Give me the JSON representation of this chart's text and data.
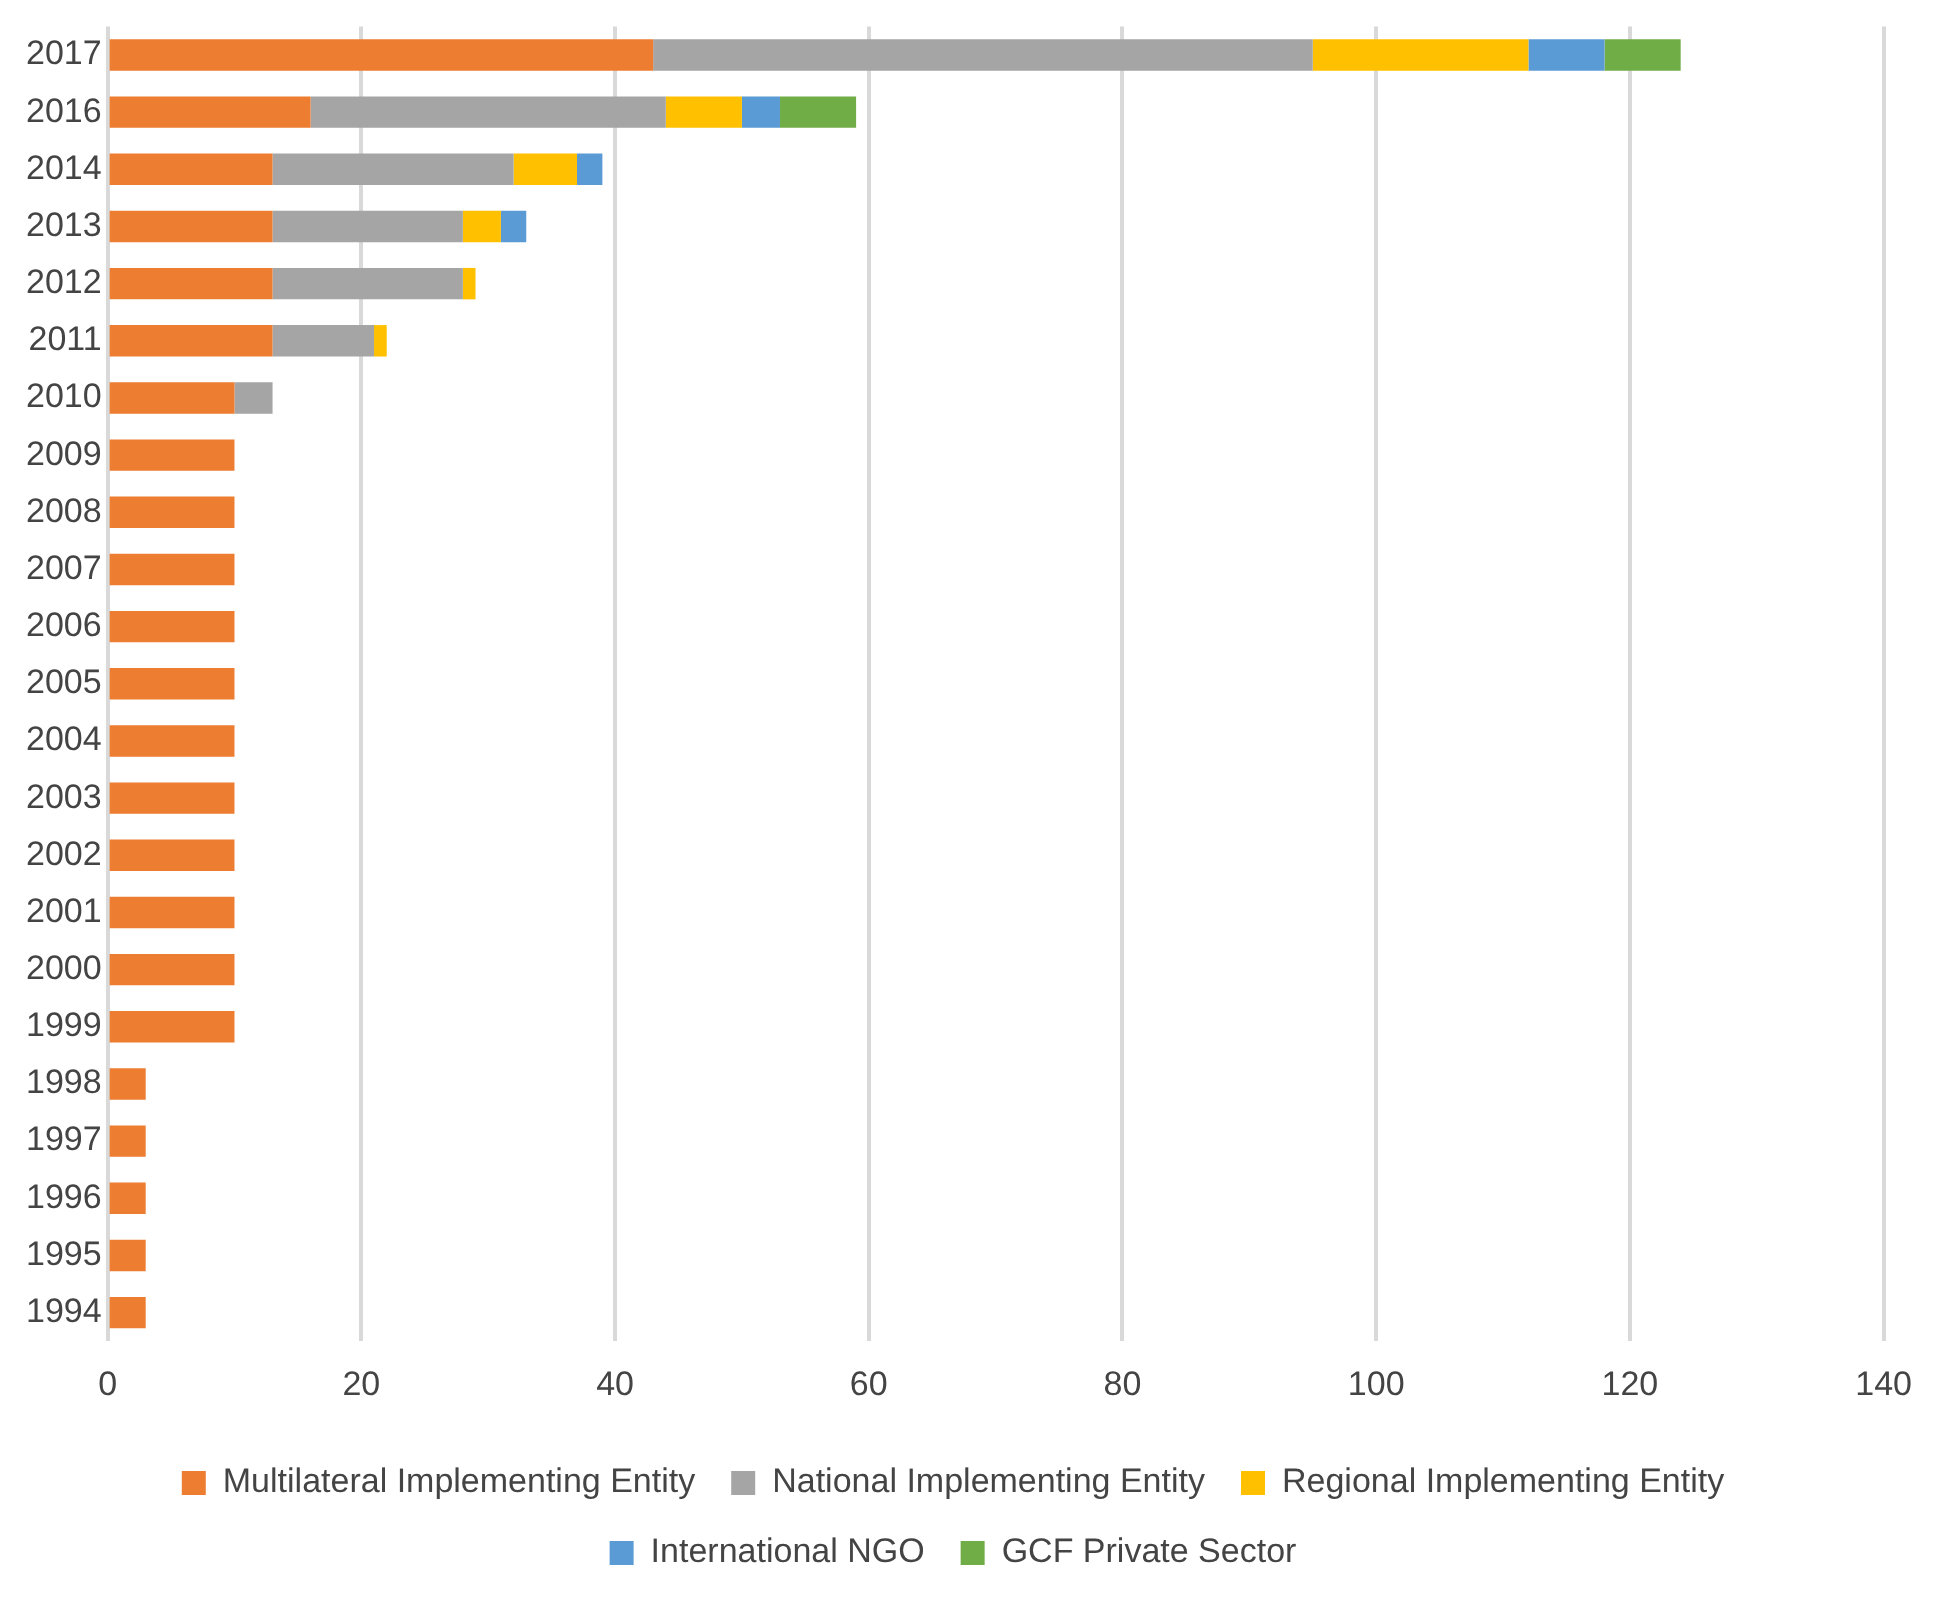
{
  "chart_data": {
    "type": "bar",
    "orientation": "horizontal",
    "stacked": true,
    "categories": [
      "2017",
      "2016",
      "2014",
      "2013",
      "2012",
      "2011",
      "2010",
      "2009",
      "2008",
      "2007",
      "2006",
      "2005",
      "2004",
      "2003",
      "2002",
      "2001",
      "2000",
      "1999",
      "1998",
      "1997",
      "1996",
      "1995",
      "1994"
    ],
    "series": [
      {
        "name": "Multilateral Implementing Entity",
        "color": "#ed7d31",
        "values": [
          43,
          16,
          13,
          13,
          13,
          13,
          10,
          10,
          10,
          10,
          10,
          10,
          10,
          10,
          10,
          10,
          10,
          10,
          3,
          3,
          3,
          3,
          3
        ]
      },
      {
        "name": "National Implementing Entity",
        "color": "#a5a5a5",
        "values": [
          52,
          28,
          19,
          15,
          15,
          8,
          3,
          null,
          null,
          null,
          null,
          null,
          null,
          null,
          null,
          null,
          null,
          null,
          null,
          null,
          null,
          null,
          null
        ]
      },
      {
        "name": "Regional Implementing Entity",
        "color": "#ffc000",
        "values": [
          17,
          6,
          5,
          3,
          1,
          1,
          null,
          null,
          null,
          null,
          null,
          null,
          null,
          null,
          null,
          null,
          null,
          null,
          null,
          null,
          null,
          null,
          null
        ]
      },
      {
        "name": "International NGO",
        "color": "#5b9bd5",
        "values": [
          6,
          3,
          2,
          2,
          null,
          null,
          null,
          null,
          null,
          null,
          null,
          null,
          null,
          null,
          null,
          null,
          null,
          null,
          null,
          null,
          null,
          null,
          null
        ]
      },
      {
        "name": "GCF Private Sector",
        "color": "#70ad47",
        "values": [
          6,
          6,
          null,
          null,
          null,
          null,
          null,
          null,
          null,
          null,
          null,
          null,
          null,
          null,
          null,
          null,
          null,
          null,
          null,
          null,
          null,
          null,
          null
        ]
      }
    ],
    "xlim": [
      0,
      140
    ],
    "xticks": [
      0,
      20,
      40,
      60,
      80,
      100,
      120,
      140
    ],
    "grid": "x",
    "legend": "bottom"
  }
}
